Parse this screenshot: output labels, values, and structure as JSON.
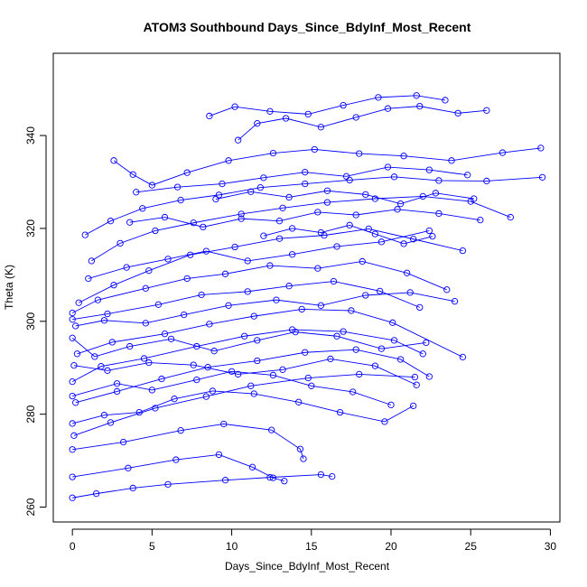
{
  "chart_data": {
    "type": "scatter",
    "title": "ATOM3 Southbound Days_Since_BdyInf_Most_Recent",
    "xlabel": "Days_Since_BdyInf_Most_Recent",
    "ylabel": "Theta (K)",
    "xlim": [
      -1.2,
      30.6
    ],
    "ylim": [
      256.8,
      357.7
    ],
    "x_ticks": [
      0,
      5,
      10,
      15,
      20,
      25,
      30
    ],
    "y_ticks": [
      260,
      280,
      300,
      320,
      340
    ],
    "x_tick_labels": [
      "0",
      "5",
      "10",
      "15",
      "20",
      "25",
      "30"
    ],
    "y_tick_labels": [
      "260",
      "280",
      "300",
      "320",
      "340"
    ],
    "grid": false,
    "legend": "none",
    "marker": "open-circle",
    "connected": true,
    "series_color": "#0000ff",
    "series": [
      {
        "x": [
          0.0,
          1.5,
          3.8,
          6.0,
          9.6,
          12.4,
          15.6,
          16.3
        ],
        "y": [
          262.0,
          262.9,
          264.1,
          264.9,
          265.8,
          266.4,
          267.0,
          266.6
        ]
      },
      {
        "x": [
          0.0,
          3.5,
          6.5,
          9.2,
          11.3,
          12.6,
          13.3
        ],
        "y": [
          266.5,
          268.4,
          270.2,
          271.3,
          268.6,
          266.3,
          265.6
        ]
      },
      {
        "x": [
          0.0,
          3.2,
          6.8,
          9.5,
          12.5,
          14.3,
          14.5
        ],
        "y": [
          272.4,
          274.0,
          276.5,
          277.9,
          276.6,
          272.5,
          270.4
        ]
      },
      {
        "x": [
          0.1,
          2.4,
          5.2,
          8.4,
          11.2,
          14.8,
          18.0,
          21.5
        ],
        "y": [
          275.4,
          278.2,
          281.3,
          283.8,
          286.1,
          287.8,
          288.6,
          288.0
        ]
      },
      {
        "x": [
          0.2,
          2.8,
          5.6,
          8.5,
          11.6,
          14.6,
          17.8,
          20.6,
          22.4
        ],
        "y": [
          282.5,
          284.9,
          287.6,
          290.1,
          291.5,
          293.3,
          293.9,
          291.8,
          288.1
        ]
      },
      {
        "x": [
          0.0,
          1.8,
          4.5,
          7.8,
          10.8,
          13.8,
          17.0,
          20.2,
          22.0
        ],
        "y": [
          287.0,
          290.3,
          292.0,
          294.6,
          296.8,
          298.2,
          297.8,
          295.9,
          293.0
        ]
      },
      {
        "x": [
          0.3,
          2.5,
          5.8,
          8.6,
          11.4,
          14.4,
          17.5,
          20.1,
          24.5
        ],
        "y": [
          293.0,
          295.5,
          297.3,
          299.4,
          301.1,
          302.6,
          302.3,
          299.7,
          292.3
        ]
      },
      {
        "x": [
          0.0,
          2.2,
          5.4,
          8.1,
          11.0,
          13.6,
          16.4,
          19.3,
          21.8
        ],
        "y": [
          300.4,
          301.6,
          303.6,
          305.7,
          306.4,
          307.6,
          308.6,
          306.5,
          303.0
        ]
      },
      {
        "x": [
          0.0,
          1.6,
          4.6,
          7.2,
          9.6,
          12.4,
          15.4,
          18.2,
          21.0,
          23.5
        ],
        "y": [
          301.8,
          304.6,
          307.1,
          309.2,
          310.2,
          312.0,
          311.4,
          312.9,
          310.4,
          306.8
        ]
      },
      {
        "x": [
          0.4,
          2.6,
          4.8,
          7.4,
          10.2,
          13.0,
          15.8,
          18.6,
          21.4,
          24.5
        ],
        "y": [
          304.0,
          307.8,
          310.9,
          314.3,
          316.0,
          317.8,
          318.5,
          319.9,
          317.7,
          315.2
        ]
      },
      {
        "x": [
          1.2,
          3.0,
          5.2,
          7.6,
          10.6,
          13.2,
          16.0,
          19.0,
          22.0,
          25.0,
          27.5
        ],
        "y": [
          313.0,
          316.8,
          319.5,
          321.2,
          323.1,
          324.4,
          325.6,
          326.4,
          326.9,
          325.8,
          322.4
        ]
      },
      {
        "x": [
          0.8,
          2.4,
          4.4,
          6.8,
          9.2,
          11.8,
          14.6,
          17.4,
          20.2,
          23.0,
          26.0,
          29.5
        ],
        "y": [
          318.6,
          321.6,
          324.3,
          326.1,
          327.2,
          328.8,
          329.6,
          330.4,
          331.1,
          330.3,
          330.2,
          331.0
        ]
      },
      {
        "x": [
          2.6,
          3.8,
          5.0,
          7.2,
          9.8,
          12.6,
          15.2,
          18.0,
          20.8,
          23.8,
          27.0,
          29.4
        ],
        "y": [
          334.6,
          331.6,
          329.3,
          332.0,
          334.6,
          336.2,
          337.0,
          336.1,
          335.6,
          334.6,
          336.3,
          337.3
        ]
      },
      {
        "x": [
          8.6,
          10.2,
          12.4,
          14.8,
          17.0,
          19.2,
          21.6,
          23.4
        ],
        "y": [
          344.2,
          346.2,
          345.2,
          344.6,
          346.5,
          348.2,
          348.6,
          347.6
        ]
      },
      {
        "x": [
          10.4,
          11.6,
          13.4,
          15.6,
          17.8,
          19.8,
          21.8,
          24.2,
          26.0
        ],
        "y": [
          339.0,
          342.6,
          343.7,
          341.8,
          343.9,
          345.8,
          346.3,
          344.8,
          345.4
        ]
      },
      {
        "x": [
          0.0,
          2.0,
          4.2,
          6.4,
          8.8,
          11.4,
          14.2,
          16.8,
          19.6,
          21.4
        ],
        "y": [
          278.0,
          279.8,
          280.4,
          283.3,
          285.0,
          284.4,
          282.6,
          280.4,
          278.4,
          281.8
        ]
      },
      {
        "x": [
          0.0,
          1.4,
          3.6,
          6.2,
          8.9,
          11.6,
          14.0,
          16.6,
          19.4,
          22.2
        ],
        "y": [
          296.4,
          292.4,
          294.6,
          296.2,
          293.6,
          295.9,
          297.7,
          296.8,
          294.1,
          295.4
        ]
      },
      {
        "x": [
          0.1,
          2.2,
          4.8,
          7.6,
          10.4,
          13.2,
          16.2,
          19.0,
          21.6
        ],
        "y": [
          290.5,
          289.4,
          291.1,
          290.6,
          288.6,
          289.6,
          291.9,
          290.4,
          286.3
        ]
      },
      {
        "x": [
          1.0,
          3.4,
          6.0,
          8.4,
          11.0,
          13.8,
          16.6,
          19.4,
          22.4
        ],
        "y": [
          309.2,
          311.6,
          313.4,
          315.1,
          313.0,
          314.4,
          316.1,
          317.1,
          319.5
        ]
      },
      {
        "x": [
          0.2,
          2.0,
          4.6,
          7.0,
          9.8,
          12.8,
          15.6,
          18.4,
          21.2,
          24.0
        ],
        "y": [
          299.0,
          300.2,
          299.6,
          301.4,
          303.4,
          304.6,
          303.4,
          305.6,
          306.2,
          304.3
        ]
      },
      {
        "x": [
          3.6,
          5.8,
          8.2,
          10.6,
          13.0,
          15.4,
          17.8,
          20.4,
          23.0,
          25.6
        ],
        "y": [
          321.3,
          322.4,
          320.3,
          322.1,
          321.6,
          323.5,
          322.9,
          324.1,
          323.2,
          321.8
        ]
      },
      {
        "x": [
          0.0,
          2.8,
          5.0,
          7.8,
          10.0,
          12.6,
          15.0,
          17.6,
          20.0
        ],
        "y": [
          283.9,
          286.6,
          285.2,
          287.4,
          289.2,
          288.4,
          286.1,
          284.8,
          282.0
        ]
      },
      {
        "x": [
          9.0,
          11.2,
          13.6,
          16.0,
          18.4,
          20.6,
          22.8,
          25.2
        ],
        "y": [
          326.3,
          327.9,
          326.7,
          328.1,
          327.3,
          325.3,
          327.6,
          326.4
        ]
      },
      {
        "x": [
          12.0,
          13.8,
          15.6,
          17.4,
          19.0,
          20.8,
          22.6
        ],
        "y": [
          318.4,
          320.0,
          319.1,
          320.7,
          318.8,
          316.7,
          318.3
        ]
      },
      {
        "x": [
          4.0,
          6.6,
          9.4,
          12.0,
          14.6,
          17.2,
          19.8,
          22.4,
          24.8
        ],
        "y": [
          327.8,
          328.9,
          329.6,
          330.9,
          332.1,
          331.2,
          333.2,
          332.6,
          331.5
        ]
      }
    ]
  }
}
